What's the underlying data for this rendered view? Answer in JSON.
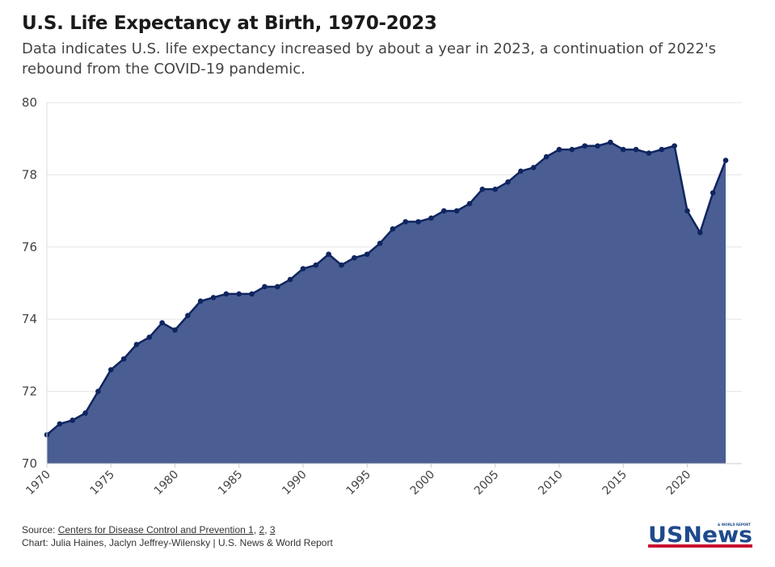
{
  "title": "U.S. Life Expectancy at Birth, 1970-2023",
  "subtitle": "Data indicates U.S. life expectancy increased by about a year in 2023, a continuation of 2022's rebound from the COVID-19 pandemic.",
  "footer": {
    "source_prefix": "Source: ",
    "source_link": "Centers for Disease Control and Prevention 1",
    "sep1": ", ",
    "link2": "2",
    "sep2": ", ",
    "link3": "3",
    "credit": "Chart: Julia Haines, Jaclyn Jeffrey-Wilensky | U.S. News & World Report"
  },
  "logo": {
    "text": "USNews",
    "tagline": "& WORLD REPORT"
  },
  "colors": {
    "fill": "#4a5e93",
    "line": "#0f2560",
    "grid": "#e5e5e5",
    "logo_blue": "#1f4a8c",
    "logo_red": "#c8102e"
  },
  "chart_data": {
    "type": "area",
    "title": "U.S. Life Expectancy at Birth, 1970-2023",
    "xlabel": "",
    "ylabel": "",
    "xlim": [
      1970,
      2023
    ],
    "ylim": [
      70,
      80
    ],
    "grid": true,
    "y_ticks": [
      "70",
      "72",
      "74",
      "76",
      "78",
      "80"
    ],
    "x_ticks": [
      "1970",
      "1975",
      "1980",
      "1985",
      "1990",
      "1995",
      "2000",
      "2005",
      "2010",
      "2015",
      "2020"
    ],
    "x": [
      1970,
      1971,
      1972,
      1973,
      1974,
      1975,
      1976,
      1977,
      1978,
      1979,
      1980,
      1981,
      1982,
      1983,
      1984,
      1985,
      1986,
      1987,
      1988,
      1989,
      1990,
      1991,
      1992,
      1993,
      1994,
      1995,
      1996,
      1997,
      1998,
      1999,
      2000,
      2001,
      2002,
      2003,
      2004,
      2005,
      2006,
      2007,
      2008,
      2009,
      2010,
      2011,
      2012,
      2013,
      2014,
      2015,
      2016,
      2017,
      2018,
      2019,
      2020,
      2021,
      2022,
      2023
    ],
    "values": [
      70.8,
      71.1,
      71.2,
      71.4,
      72.0,
      72.6,
      72.9,
      73.3,
      73.5,
      73.9,
      73.7,
      74.1,
      74.5,
      74.6,
      74.7,
      74.7,
      74.7,
      74.9,
      74.9,
      75.1,
      75.4,
      75.5,
      75.8,
      75.5,
      75.7,
      75.8,
      76.1,
      76.5,
      76.7,
      76.7,
      76.8,
      77.0,
      77.0,
      77.2,
      77.6,
      77.6,
      77.8,
      78.1,
      78.2,
      78.5,
      78.7,
      78.7,
      78.8,
      78.8,
      78.9,
      78.7,
      78.7,
      78.6,
      78.7,
      78.8,
      77.0,
      76.4,
      77.5,
      78.4
    ]
  }
}
